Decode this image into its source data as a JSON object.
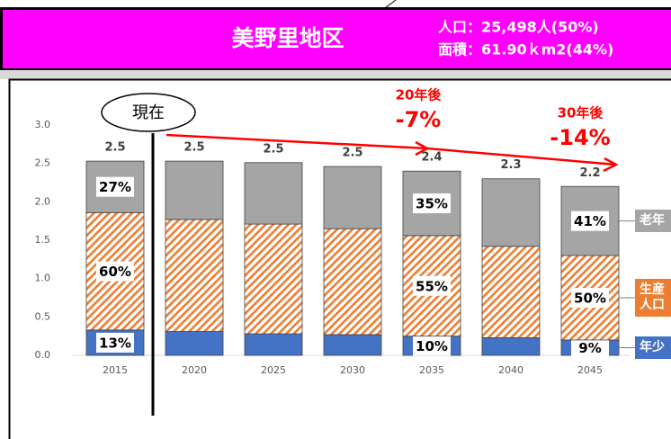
{
  "header": {
    "title": "美野里地区",
    "population": "人口：25,498人(50%)",
    "area": "面積：61.90ｋm2(44%)"
  },
  "chart_data": {
    "type": "stacked_bar",
    "categories": [
      "2015",
      "2020",
      "2025",
      "2030",
      "2035",
      "2040",
      "2045"
    ],
    "series": [
      {
        "name": "年少",
        "color": "#4472c4",
        "values": [
          0.33,
          0.31,
          0.28,
          0.27,
          0.25,
          0.23,
          0.2
        ],
        "share_labels": [
          "13%",
          null,
          null,
          null,
          "10%",
          null,
          "9%"
        ]
      },
      {
        "name": "生産人口",
        "color": "#ed7d31",
        "hatch": true,
        "values": [
          1.53,
          1.46,
          1.43,
          1.38,
          1.31,
          1.19,
          1.1
        ],
        "share_labels": [
          "60%",
          null,
          null,
          null,
          "55%",
          null,
          "50%"
        ]
      },
      {
        "name": "老年",
        "color": "#a5a5a5",
        "values": [
          0.67,
          0.76,
          0.8,
          0.81,
          0.84,
          0.88,
          0.9
        ],
        "share_labels": [
          "27%",
          null,
          null,
          null,
          "35%",
          null,
          "41%"
        ]
      }
    ],
    "total_labels": [
      "2.5",
      "2.5",
      "2.5",
      "2.5",
      "2.4",
      "2.3",
      "2.2"
    ],
    "ylim": [
      0,
      3
    ],
    "yticks": [
      {
        "value": 0,
        "label": "0.0"
      },
      0.5,
      {
        "value": 1,
        "label": "1.0"
      },
      1.5,
      {
        "value": 2,
        "label": "2.0"
      },
      2.5,
      {
        "value": 3,
        "label": "3.0"
      }
    ],
    "annotations": {
      "now": "現在",
      "y20": "20年後",
      "y20_change": "-7%",
      "y30": "30年後",
      "y30_change": "-14%"
    }
  }
}
